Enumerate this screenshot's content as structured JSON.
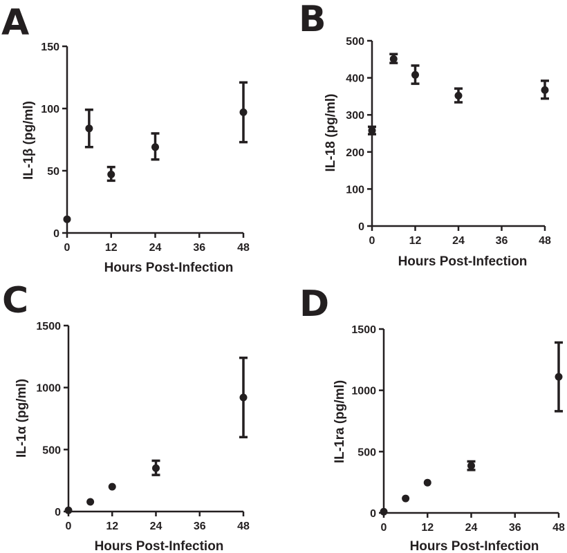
{
  "chart_data": [
    {
      "panel": "A",
      "type": "scatter",
      "xlabel": "Hours Post-Infection",
      "ylabel": "IL-1β (pg/ml)",
      "xlim": [
        0,
        48
      ],
      "ylim": [
        0,
        150
      ],
      "xticks": [
        0,
        12,
        24,
        36,
        48
      ],
      "yticks": [
        0,
        50,
        100,
        150
      ],
      "points": [
        {
          "x": 0,
          "y": 11,
          "err_low": null,
          "err_high": null
        },
        {
          "x": 6,
          "y": 84,
          "err_low": 69,
          "err_high": 99
        },
        {
          "x": 12,
          "y": 47,
          "err_low": 42,
          "err_high": 53
        },
        {
          "x": 24,
          "y": 69,
          "err_low": 59,
          "err_high": 80
        },
        {
          "x": 48,
          "y": 97,
          "err_low": 73,
          "err_high": 121
        }
      ]
    },
    {
      "panel": "B",
      "type": "scatter",
      "xlabel": "Hours Post-Infection",
      "ylabel": "IL-18 (pg/ml)",
      "xlim": [
        0,
        48
      ],
      "ylim": [
        0,
        500
      ],
      "xticks": [
        0,
        12,
        24,
        36,
        48
      ],
      "yticks": [
        0,
        100,
        200,
        300,
        400,
        500
      ],
      "points": [
        {
          "x": 0,
          "y": 258,
          "err_low": 248,
          "err_high": 268
        },
        {
          "x": 6,
          "y": 451,
          "err_low": 440,
          "err_high": 464
        },
        {
          "x": 12,
          "y": 408,
          "err_low": 384,
          "err_high": 433
        },
        {
          "x": 24,
          "y": 352,
          "err_low": 334,
          "err_high": 371
        },
        {
          "x": 48,
          "y": 367,
          "err_low": 344,
          "err_high": 392
        }
      ]
    },
    {
      "panel": "C",
      "type": "scatter",
      "xlabel": "Hours Post-Infection",
      "ylabel": "IL-1α (pg/ml)",
      "xlim": [
        0,
        48
      ],
      "ylim": [
        0,
        1500
      ],
      "xticks": [
        0,
        12,
        24,
        36,
        48
      ],
      "yticks": [
        0,
        500,
        1000,
        1500
      ],
      "points": [
        {
          "x": 0,
          "y": 10,
          "err_low": null,
          "err_high": null
        },
        {
          "x": 6,
          "y": 78,
          "err_low": null,
          "err_high": null
        },
        {
          "x": 12,
          "y": 200,
          "err_low": null,
          "err_high": null
        },
        {
          "x": 24,
          "y": 350,
          "err_low": 295,
          "err_high": 410
        },
        {
          "x": 48,
          "y": 920,
          "err_low": 600,
          "err_high": 1240
        }
      ]
    },
    {
      "panel": "D",
      "type": "scatter",
      "xlabel": "Hours Post-Infection",
      "ylabel": "IL-1ra (pg/ml)",
      "xlim": [
        0,
        48
      ],
      "ylim": [
        0,
        1500
      ],
      "xticks": [
        0,
        12,
        24,
        36,
        48
      ],
      "yticks": [
        0,
        500,
        1000,
        1500
      ],
      "points": [
        {
          "x": 0,
          "y": 10,
          "err_low": null,
          "err_high": null
        },
        {
          "x": 6,
          "y": 118,
          "err_low": null,
          "err_high": null
        },
        {
          "x": 12,
          "y": 247,
          "err_low": null,
          "err_high": null
        },
        {
          "x": 24,
          "y": 385,
          "err_low": 350,
          "err_high": 420
        },
        {
          "x": 48,
          "y": 1110,
          "err_low": 830,
          "err_high": 1390
        }
      ]
    }
  ]
}
